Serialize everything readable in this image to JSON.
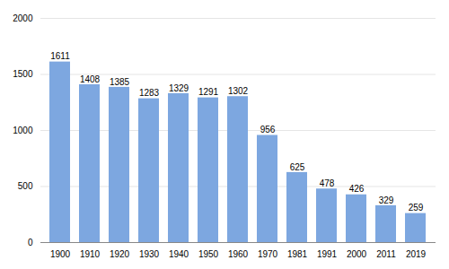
{
  "chart_data": {
    "type": "bar",
    "categories": [
      "1900",
      "1910",
      "1920",
      "1930",
      "1940",
      "1950",
      "1960",
      "1970",
      "1981",
      "1991",
      "2000",
      "2011",
      "2019"
    ],
    "values": [
      1611,
      1408,
      1385,
      1283,
      1329,
      1291,
      1302,
      956,
      625,
      478,
      426,
      329,
      259
    ],
    "color": "#7da7e0",
    "ylim": [
      0,
      2000
    ],
    "yticks": [
      0,
      500,
      1000,
      1500,
      2000
    ],
    "grid": true,
    "data_labels": true
  }
}
